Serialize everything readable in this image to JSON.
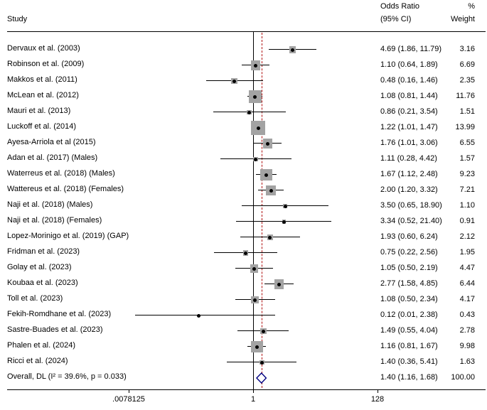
{
  "chart_data": {
    "type": "table",
    "subtype": "forest-plot",
    "columns": {
      "study": "Study",
      "or_line1": "Odds Ratio",
      "or_line2": "(95% CI)",
      "weight_line1": "%",
      "weight_line2": "Weight"
    },
    "x_axis": {
      "scale": "log",
      "ticks": [
        ".0078125",
        "1",
        "128"
      ],
      "tick_values": [
        0.0078125,
        1,
        128
      ]
    },
    "null_line_value": 1,
    "overall_dashed_value": 1.4,
    "colors": {
      "square": "#a3a3a3",
      "ci": "#000000",
      "point": "#000000",
      "diamond_stroke": "#000080",
      "dashed_line": "#b01010",
      "axis": "#000000"
    },
    "studies": [
      {
        "label": "Dervaux et al. (2003)",
        "or": 4.69,
        "ci": [
          1.86,
          11.79
        ],
        "or_text": "4.69 (1.86, 11.79)",
        "weight": 3.16,
        "weight_text": "3.16"
      },
      {
        "label": "Robinson et al. (2009)",
        "or": 1.1,
        "ci": [
          0.64,
          1.89
        ],
        "or_text": "1.10 (0.64, 1.89)",
        "weight": 6.69,
        "weight_text": "6.69"
      },
      {
        "label": "Makkos et al. (2011)",
        "or": 0.48,
        "ci": [
          0.16,
          1.46
        ],
        "or_text": "0.48 (0.16, 1.46)",
        "weight": 2.35,
        "weight_text": "2.35"
      },
      {
        "label": "McLean et al. (2012)",
        "or": 1.08,
        "ci": [
          0.81,
          1.44
        ],
        "or_text": "1.08 (0.81, 1.44)",
        "weight": 11.76,
        "weight_text": "11.76"
      },
      {
        "label": "Mauri et al. (2013)",
        "or": 0.86,
        "ci": [
          0.21,
          3.54
        ],
        "or_text": "0.86 (0.21, 3.54)",
        "weight": 1.51,
        "weight_text": "1.51"
      },
      {
        "label": "Luckoff et al. (2014)",
        "or": 1.22,
        "ci": [
          1.01,
          1.47
        ],
        "or_text": "1.22 (1.01, 1.47)",
        "weight": 13.99,
        "weight_text": "13.99"
      },
      {
        "label": "Ayesa-Arriola et al (2015)",
        "or": 1.76,
        "ci": [
          1.01,
          3.06
        ],
        "or_text": "1.76 (1.01, 3.06)",
        "weight": 6.55,
        "weight_text": "6.55"
      },
      {
        "label": "Adan et al. (2017) (Males)",
        "or": 1.11,
        "ci": [
          0.28,
          4.42
        ],
        "or_text": "1.11 (0.28, 4.42)",
        "weight": 1.57,
        "weight_text": "1.57"
      },
      {
        "label": "Waterreus et al. (2018) (Males)",
        "or": 1.67,
        "ci": [
          1.12,
          2.48
        ],
        "or_text": "1.67 (1.12, 2.48)",
        "weight": 9.23,
        "weight_text": "9.23"
      },
      {
        "label": "Wattereus et al. (2018) (Females)",
        "or": 2.0,
        "ci": [
          1.2,
          3.32
        ],
        "or_text": "2.00 (1.20, 3.32)",
        "weight": 7.21,
        "weight_text": "7.21"
      },
      {
        "label": "Naji et al. (2018) (Males)",
        "or": 3.5,
        "ci": [
          0.65,
          18.9
        ],
        "or_text": "3.50 (0.65, 18.90)",
        "weight": 1.1,
        "weight_text": "1.10"
      },
      {
        "label": "Naji et al. (2018) (Females)",
        "or": 3.34,
        "ci": [
          0.52,
          21.4
        ],
        "or_text": "3.34 (0.52, 21.40)",
        "weight": 0.91,
        "weight_text": "0.91"
      },
      {
        "label": "Lopez-Morinigo et al. (2019) (GAP)",
        "or": 1.93,
        "ci": [
          0.6,
          6.24
        ],
        "or_text": "1.93 (0.60, 6.24)",
        "weight": 2.12,
        "weight_text": "2.12"
      },
      {
        "label": "Fridman et al. (2023)",
        "or": 0.75,
        "ci": [
          0.22,
          2.56
        ],
        "or_text": "0.75 (0.22, 2.56)",
        "weight": 1.95,
        "weight_text": "1.95"
      },
      {
        "label": "Golay et al. (2023)",
        "or": 1.05,
        "ci": [
          0.5,
          2.19
        ],
        "or_text": "1.05 (0.50, 2.19)",
        "weight": 4.47,
        "weight_text": "4.47"
      },
      {
        "label": "Koubaa et al. (2023)",
        "or": 2.77,
        "ci": [
          1.58,
          4.85
        ],
        "or_text": "2.77 (1.58, 4.85)",
        "weight": 6.44,
        "weight_text": "6.44"
      },
      {
        "label": "Toll et al. (2023)",
        "or": 1.08,
        "ci": [
          0.5,
          2.34
        ],
        "or_text": "1.08 (0.50, 2.34)",
        "weight": 4.17,
        "weight_text": "4.17"
      },
      {
        "label": "Fekih-Romdhane et al. (2023)",
        "or": 0.12,
        "ci": [
          0.01,
          2.38
        ],
        "or_text": "0.12 (0.01, 2.38)",
        "weight": 0.43,
        "weight_text": "0.43"
      },
      {
        "label": "Sastre-Buades et al. (2023)",
        "or": 1.49,
        "ci": [
          0.55,
          4.04
        ],
        "or_text": "1.49 (0.55, 4.04)",
        "weight": 2.78,
        "weight_text": "2.78"
      },
      {
        "label": "Phalen et al. (2024)",
        "or": 1.16,
        "ci": [
          0.81,
          1.67
        ],
        "or_text": "1.16 (0.81, 1.67)",
        "weight": 9.98,
        "weight_text": "9.98"
      },
      {
        "label": "Ricci et al. (2024)",
        "or": 1.4,
        "ci": [
          0.36,
          5.41
        ],
        "or_text": "1.40 (0.36, 5.41)",
        "weight": 1.63,
        "weight_text": "1.63"
      }
    ],
    "overall": {
      "label": "Overall, DL (I² = 39.6%, p = 0.033)",
      "or": 1.4,
      "ci": [
        1.16,
        1.68
      ],
      "or_text": "1.40 (1.16, 1.68)",
      "weight_text": "100.00"
    }
  }
}
